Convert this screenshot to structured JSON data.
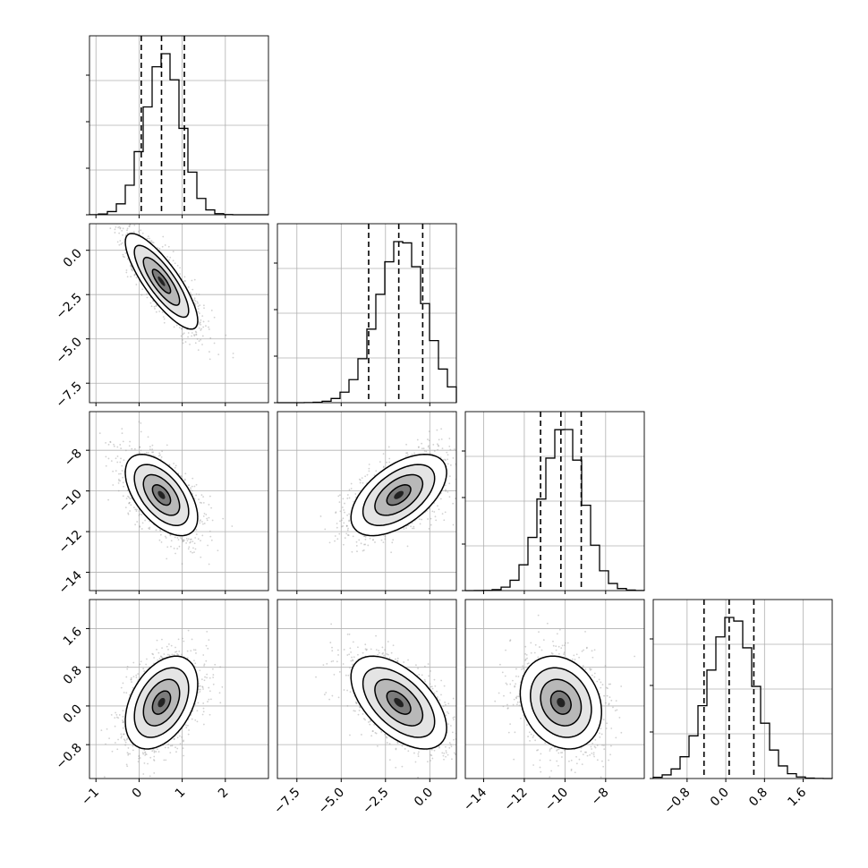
{
  "chart_data": {
    "type": "corner",
    "title": "",
    "parameters": [
      {
        "name": "",
        "range": [
          -1.15,
          3.0
        ],
        "ticks": [
          -1,
          0,
          1,
          2
        ],
        "tick_labels": [
          "−1",
          "0",
          "1",
          "2"
        ],
        "quantiles": [
          0.05,
          0.52,
          1.05
        ],
        "mean": 0.52,
        "sd": 0.42
      },
      {
        "name": "",
        "range": [
          -8.6,
          1.5
        ],
        "ticks": [
          -7.5,
          -5.0,
          -2.5,
          0.0
        ],
        "tick_labels": [
          "−7.5",
          "−5.0",
          "−2.5",
          "0.0"
        ],
        "quantiles": [
          -3.45,
          -1.75,
          -0.4
        ],
        "mean": -1.75,
        "sd": 1.35
      },
      {
        "name": "",
        "range": [
          -14.9,
          -6.1
        ],
        "ticks": [
          -14,
          -12,
          -10,
          -8
        ],
        "tick_labels": [
          "−14",
          "−12",
          "−10",
          "−8"
        ],
        "quantiles": [
          -11.2,
          -10.2,
          -9.2
        ],
        "mean": -10.2,
        "sd": 1.0
      },
      {
        "name": "",
        "range": [
          -1.5,
          2.2
        ],
        "ticks": [
          -0.8,
          0.0,
          0.8,
          1.6
        ],
        "tick_labels": [
          "−0.8",
          "0.0",
          "0.8",
          "1.6"
        ],
        "quantiles": [
          -0.45,
          0.07,
          0.58
        ],
        "mean": 0.07,
        "sd": 0.48
      }
    ],
    "correlations": [
      [
        1.0,
        -0.82,
        -0.55,
        0.4
      ],
      [
        -0.82,
        1.0,
        0.55,
        -0.55
      ],
      [
        -0.55,
        0.55,
        1.0,
        -0.2
      ],
      [
        0.4,
        -0.55,
        -0.2,
        1.0
      ]
    ],
    "histogram_bins": 20,
    "contour_levels_sigma": [
      0.5,
      1.0,
      1.5,
      2.0
    ],
    "quantile_line_style": "dashed",
    "grid": true,
    "hist_y_ticks_unlabeled": true
  }
}
